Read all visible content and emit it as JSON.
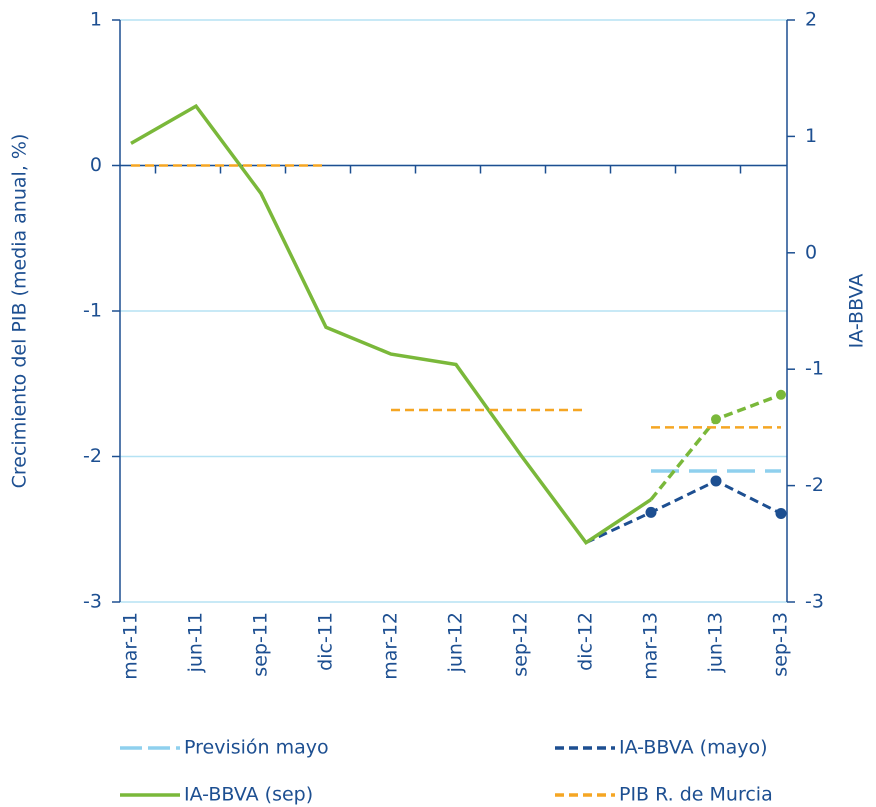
{
  "chart_data": {
    "type": "line",
    "categories": [
      "mar-11",
      "jun-11",
      "sep-11",
      "dic-11",
      "mar-12",
      "jun-12",
      "sep-12",
      "dic-12",
      "mar-13",
      "jun-13",
      "sep-13"
    ],
    "ylabel": "Crecimiento del PIB (media anual, %)",
    "y2label": "IA-BBVA",
    "ylim": [
      -3,
      1
    ],
    "yticks": [
      -3,
      -2,
      -1,
      0,
      1
    ],
    "y2lim": [
      -3,
      2
    ],
    "y2ticks": [
      -3,
      -2,
      -1,
      0,
      1,
      2
    ],
    "grid": true,
    "series": [
      {
        "name": "Previsión mayo",
        "color": "#8fd0ee",
        "style": "longdash",
        "axis": "y",
        "values": [
          null,
          null,
          null,
          null,
          null,
          null,
          null,
          null,
          -2.1,
          -2.1,
          -2.1
        ]
      },
      {
        "name": "IA-BBVA (mayo)",
        "color": "#1d4f91",
        "style": "dashed",
        "axis": "y2",
        "values": [
          null,
          null,
          null,
          null,
          null,
          null,
          null,
          -2.49,
          -2.23,
          -1.96,
          -2.24
        ]
      },
      {
        "name": "IA-BBVA (sep)",
        "color": "#7ab83a",
        "style": "solid",
        "dashed_from_index": 8,
        "axis": "y2",
        "values": [
          0.94,
          1.26,
          0.51,
          -0.64,
          -0.87,
          -0.96,
          -1.74,
          -2.49,
          -2.12,
          -1.43,
          -1.22
        ]
      },
      {
        "name": "PIB R. de Murcia",
        "color": "#f5a623",
        "style": "step",
        "axis": "y",
        "values": [
          0,
          0,
          0,
          0,
          -1.68,
          -1.68,
          -1.68,
          -1.68,
          -1.8,
          -1.8,
          -1.8
        ]
      }
    ]
  }
}
